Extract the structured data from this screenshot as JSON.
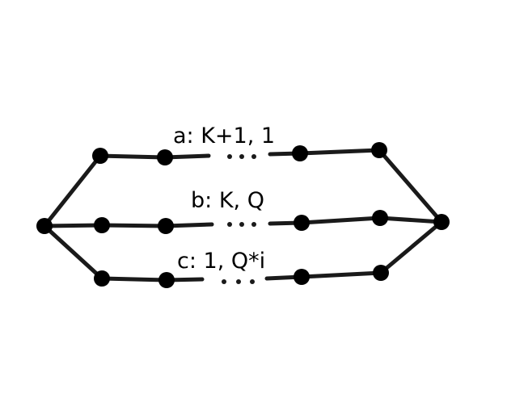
{
  "diagram": {
    "paths": [
      {
        "id": "a",
        "label": "a: K+1, 1"
      },
      {
        "id": "b",
        "label": "b: K, Q"
      },
      {
        "id": "c",
        "label": "c: 1, Q*i"
      }
    ],
    "colors": {
      "edge": "#1a1a1a",
      "node": "#000000",
      "background": "#ffffff"
    }
  }
}
